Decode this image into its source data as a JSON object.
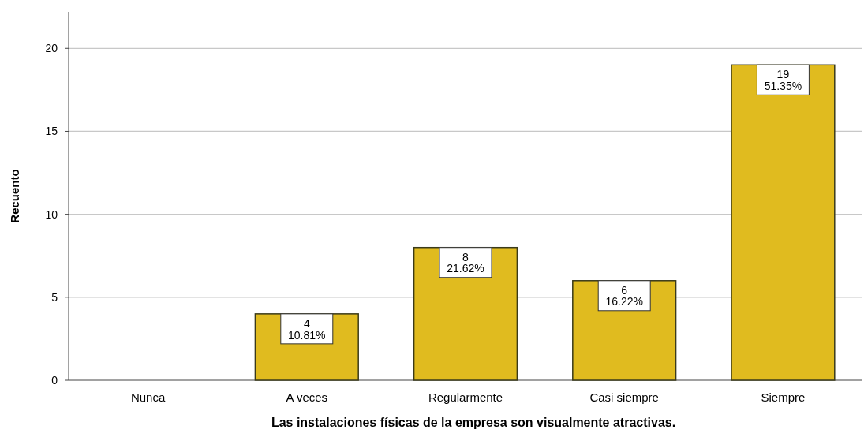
{
  "chart_data": {
    "type": "bar",
    "xlabel": "Las instalaciones físicas de la empresa son visualmente atractivas.",
    "ylabel": "Recuento",
    "categories": [
      "Nunca",
      "A veces",
      "Regularmente",
      "Casi siempre",
      "Siempre"
    ],
    "values": [
      0,
      4,
      8,
      6,
      19
    ],
    "color": "#e0bb1f",
    "value_labels": [
      null,
      "4\n10.81%",
      "8\n21.62%",
      "6\n16.22%",
      "19\n51.35%"
    ],
    "ylim": [
      0,
      22.2
    ],
    "yticks": [
      0,
      5,
      10,
      15,
      20
    ],
    "grid": "y"
  }
}
